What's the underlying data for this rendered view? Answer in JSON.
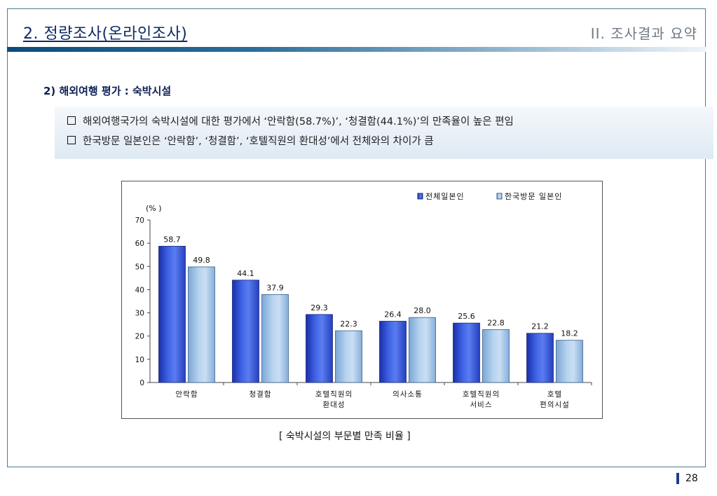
{
  "header": {
    "title": "2. 정량조사(온라인조사)",
    "section": "II. 조사결과 요약"
  },
  "subheading": "2) 해외여행 평가 : 숙박시설",
  "notes": [
    "해외여행국가의 숙박시설에 대한 평가에서 ‘안락함(58.7%)’, ‘청결함(44.1%)’의 만족율이 높은 편임",
    "한국방문 일본인은 ‘안락함’, ‘청결함’, ‘호텔직원의 환대성’에서 전체와의 차이가 큼"
  ],
  "chart_data": {
    "type": "bar",
    "unit_label": "(% )",
    "categories": [
      [
        "안락함"
      ],
      [
        "청결함"
      ],
      [
        "호텔직원의",
        "환대성"
      ],
      [
        "의사소통"
      ],
      [
        "호텔직원의",
        "서비스"
      ],
      [
        "호텔",
        "편의시설"
      ]
    ],
    "series": [
      {
        "name": "전체일본인",
        "values": [
          58.7,
          44.1,
          29.3,
          26.4,
          25.6,
          21.2
        ],
        "labels": [
          "58.7",
          "44.1",
          "29.3",
          "26.4",
          "25.6",
          "21.2"
        ]
      },
      {
        "name": "한국방문 일본인",
        "values": [
          49.8,
          37.9,
          22.3,
          28.0,
          22.8,
          18.2
        ],
        "labels": [
          "49.8",
          "37.9",
          "22.3",
          "28.0",
          "22.8",
          "18.2"
        ]
      }
    ],
    "ylim": [
      0,
      70
    ],
    "yticks": [
      "0",
      "10",
      "20",
      "30",
      "40",
      "50",
      "60",
      "70"
    ],
    "legend_position": "top-right",
    "grid": false,
    "colors": {
      "series1_dark": "#1f3cc4",
      "series1_light": "#6f8ff2",
      "series2_dark": "#6d9ccc",
      "series2_light": "#cfe2f5"
    }
  },
  "caption": "[ 숙박시설의 부문별 만족 비율 ]",
  "page_number": "28"
}
